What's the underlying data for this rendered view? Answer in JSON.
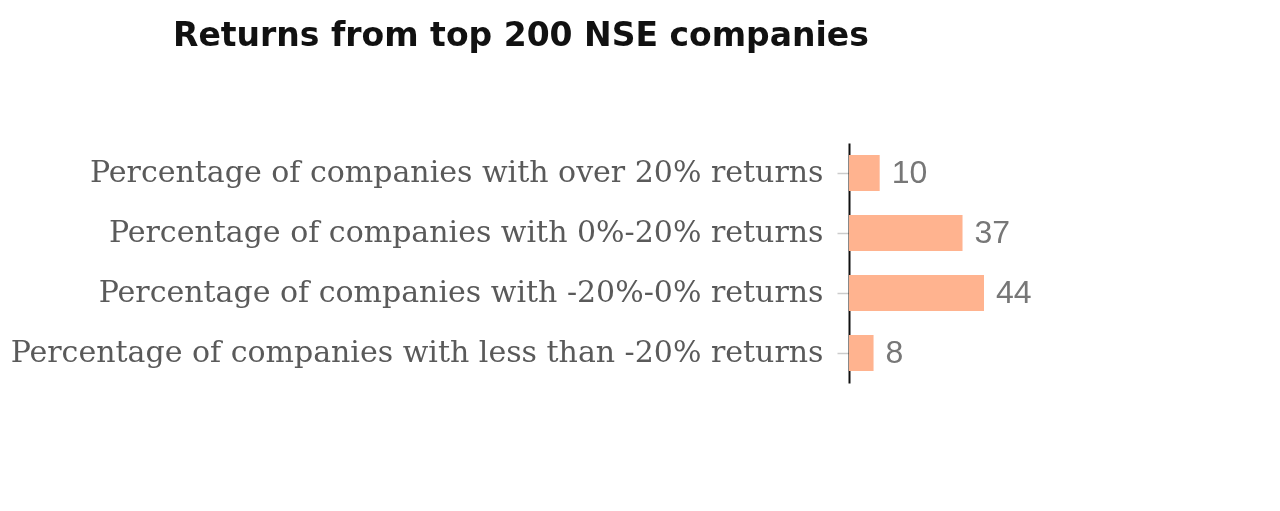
{
  "chart_data": {
    "type": "bar",
    "orientation": "horizontal",
    "title": "Returns from top 200 NSE companies",
    "categories": [
      "Percentage of companies with over 20% returns",
      "Percentage of companies with 0%-20% returns",
      "Percentage of companies with -20%-0% returns",
      "Percentage of companies with less than -20% returns"
    ],
    "values": [
      10,
      37,
      44,
      8
    ],
    "color": "#ffb38f",
    "data_labels": true
  }
}
